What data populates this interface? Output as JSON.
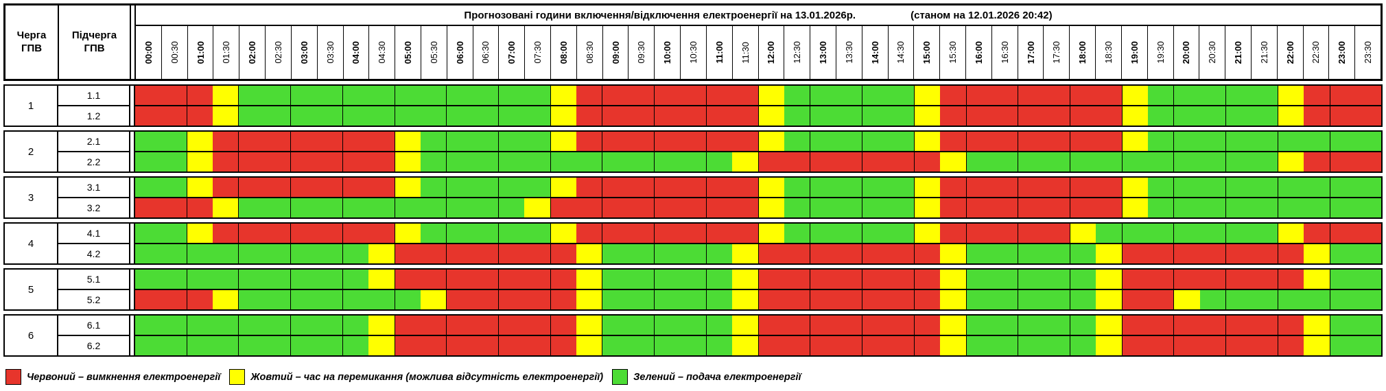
{
  "colors": {
    "R": "#e7352c",
    "Y": "#ffff00",
    "G": "#4cdc35"
  },
  "header": {
    "queue_col": {
      "line1": "Черга",
      "line2": "ГПВ"
    },
    "subqueue_col": {
      "line1": "Підчерга",
      "line2": "ГПВ"
    }
  },
  "chart_data": {
    "type": "heatmap",
    "title": "Прогнозовані години включення/відключення електроенергії на 13.01.2026р.",
    "subtitle": "(станом на 12.01.2026 20:42)",
    "columns": [
      "00:00",
      "00:30",
      "01:00",
      "01:30",
      "02:00",
      "02:30",
      "03:00",
      "03:30",
      "04:00",
      "04:30",
      "05:00",
      "05:30",
      "06:00",
      "06:30",
      "07:00",
      "07:30",
      "08:00",
      "08:30",
      "09:00",
      "09:30",
      "10:00",
      "10:30",
      "11:00",
      "11:30",
      "12:00",
      "12:30",
      "13:00",
      "13:30",
      "14:00",
      "14:30",
      "15:00",
      "15:30",
      "16:00",
      "16:30",
      "17:00",
      "17:30",
      "18:00",
      "18:30",
      "19:00",
      "19:30",
      "20:00",
      "20:30",
      "21:00",
      "21:30",
      "22:00",
      "22:30",
      "23:00",
      "23:30"
    ],
    "value_meanings": {
      "R": "вимкнення електроенергії",
      "Y": "час на перемикання (можлива відсутність електроенергії)",
      "G": "подача електроенергії"
    },
    "rows": [
      {
        "queue": "1",
        "subqueue": "1.1",
        "cells": "RRRYGGGGGGGGGGGGYRRRRRRRYGGGGGYRRRRRRRYGGGGGYRRR"
      },
      {
        "queue": "1",
        "subqueue": "1.2",
        "cells": "RRRYGGGGGGGGGGGGYRRRRRRRYGGGGGYRRRRRRRYGGGGGYRRR"
      },
      {
        "queue": "2",
        "subqueue": "2.1",
        "cells": "GGYRRRRRRRYGGGGGYRRRRRRRYGGGGGYRRRRRRRYGGGGGGGGG"
      },
      {
        "queue": "2",
        "subqueue": "2.2",
        "cells": "GGYRRRRRRRYGGGGGGGGGGGGYRRRRRRRYGGGGGGGGGGGGYRRR"
      },
      {
        "queue": "3",
        "subqueue": "3.1",
        "cells": "GGYRRRRRRRYGGGGGYRRRRRRRYGGGGGYRRRRRRRYGGGGGGGGG"
      },
      {
        "queue": "3",
        "subqueue": "3.2",
        "cells": "RRRYGGGGGGGGGGGYRRRRRRRRYGGGGGYRRRRRRRYGGGGGGGGG"
      },
      {
        "queue": "4",
        "subqueue": "4.1",
        "cells": "GGYRRRRRRRYGGGGGYRRRRRRRYGGGGGYRRRRRYGGGGGGGYRRR"
      },
      {
        "queue": "4",
        "subqueue": "4.2",
        "cells": "GGGGGGGGGYRRRRRRRYGGGGGYRRRRRRRYGGGGGYRRRRRRRYGG"
      },
      {
        "queue": "5",
        "subqueue": "5.1",
        "cells": "GGGGGGGGGYRRRRRRRYGGGGGYRRRRRRRYGGGGGYRRRRRRRYGG"
      },
      {
        "queue": "5",
        "subqueue": "5.2",
        "cells": "RRRYGGGGGGGYRRRRRYGGGGGYRRRRRRRYGGGGGYRRYGGGGGGG"
      },
      {
        "queue": "6",
        "subqueue": "6.1",
        "cells": "GGGGGGGGGYRRRRRRRYGGGGGYRRRRRRRYGGGGGYRRRRRRRYGG"
      },
      {
        "queue": "6",
        "subqueue": "6.2",
        "cells": "GGGGGGGGGYRRRRRRRYGGGGGYRRRRRRRYGGGGGYRRRRRRRYGG"
      }
    ]
  },
  "legend": [
    {
      "key": "R",
      "label": "Червоний – вимкнення електроенергії"
    },
    {
      "key": "Y",
      "label": "Жовтий – час на перемикання (можлива відсутність електроенергії)"
    },
    {
      "key": "G",
      "label": "Зелений – подача електроенергії"
    }
  ]
}
